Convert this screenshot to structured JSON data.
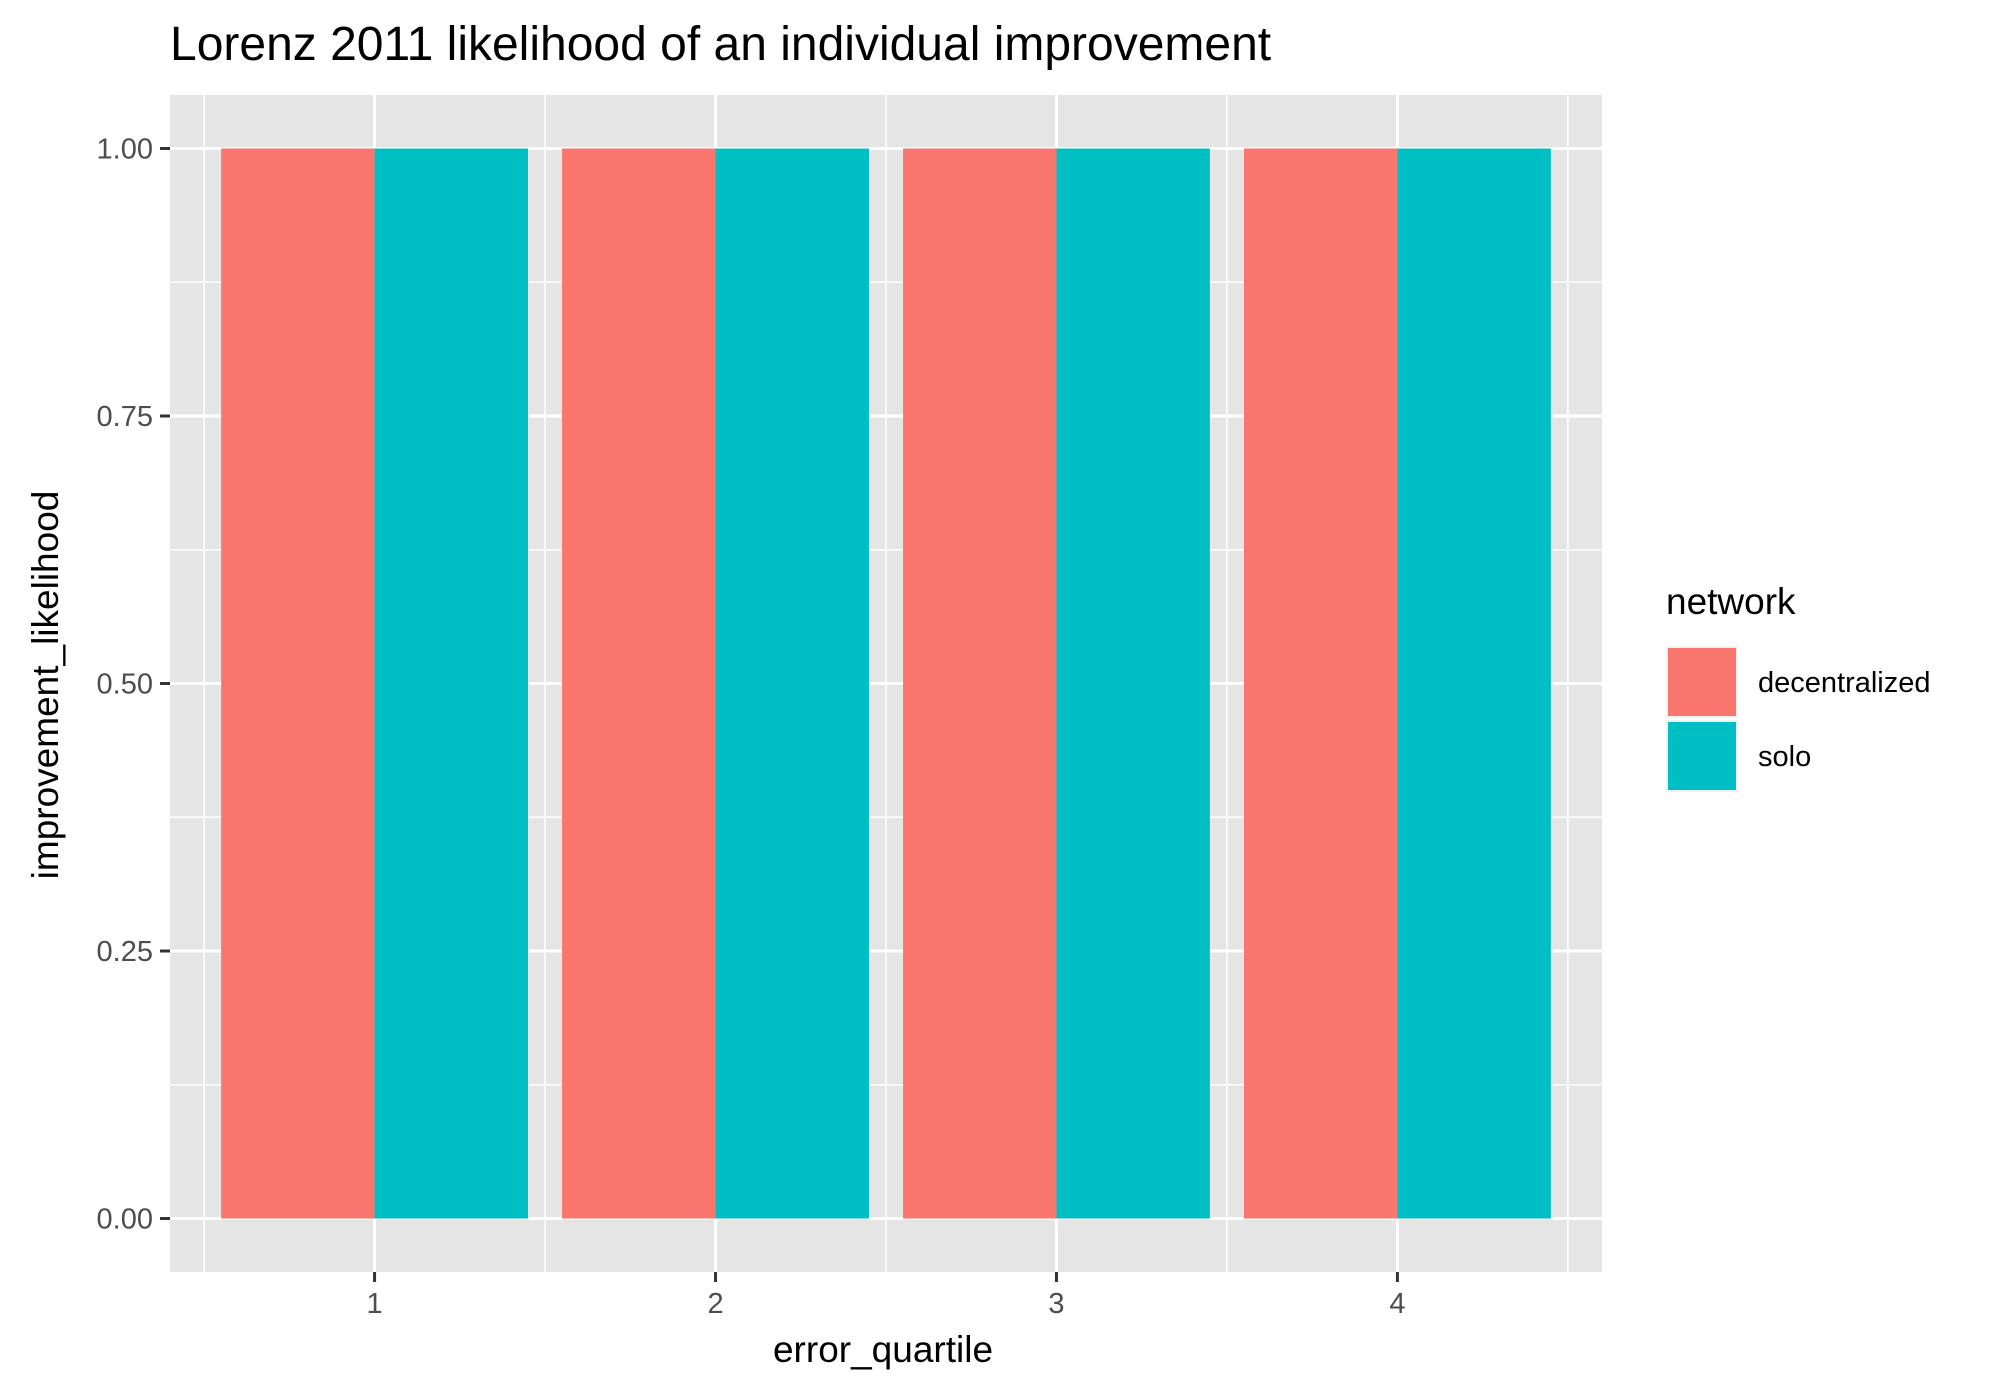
{
  "chart_data": {
    "type": "bar",
    "title": "Lorenz 2011 likelihood of an individual improvement",
    "xlabel": "error_quartile",
    "ylabel": "improvement_likelihood",
    "categories": [
      "1",
      "2",
      "3",
      "4"
    ],
    "series": [
      {
        "name": "decentralized",
        "values": [
          1.0,
          1.0,
          1.0,
          1.0
        ],
        "color": "#F8766D"
      },
      {
        "name": "solo",
        "values": [
          1.0,
          1.0,
          1.0,
          1.0
        ],
        "color": "#00BFC4"
      }
    ],
    "ylim": [
      -0.05,
      1.05
    ],
    "y_ticks": [
      "0.00",
      "0.25",
      "0.50",
      "0.75",
      "1.00"
    ],
    "y_tick_values": [
      0,
      0.25,
      0.5,
      0.75,
      1.0
    ],
    "grid": true,
    "panel_background": "#E5E5E5",
    "legend": {
      "title": "network",
      "placement": "right"
    }
  }
}
